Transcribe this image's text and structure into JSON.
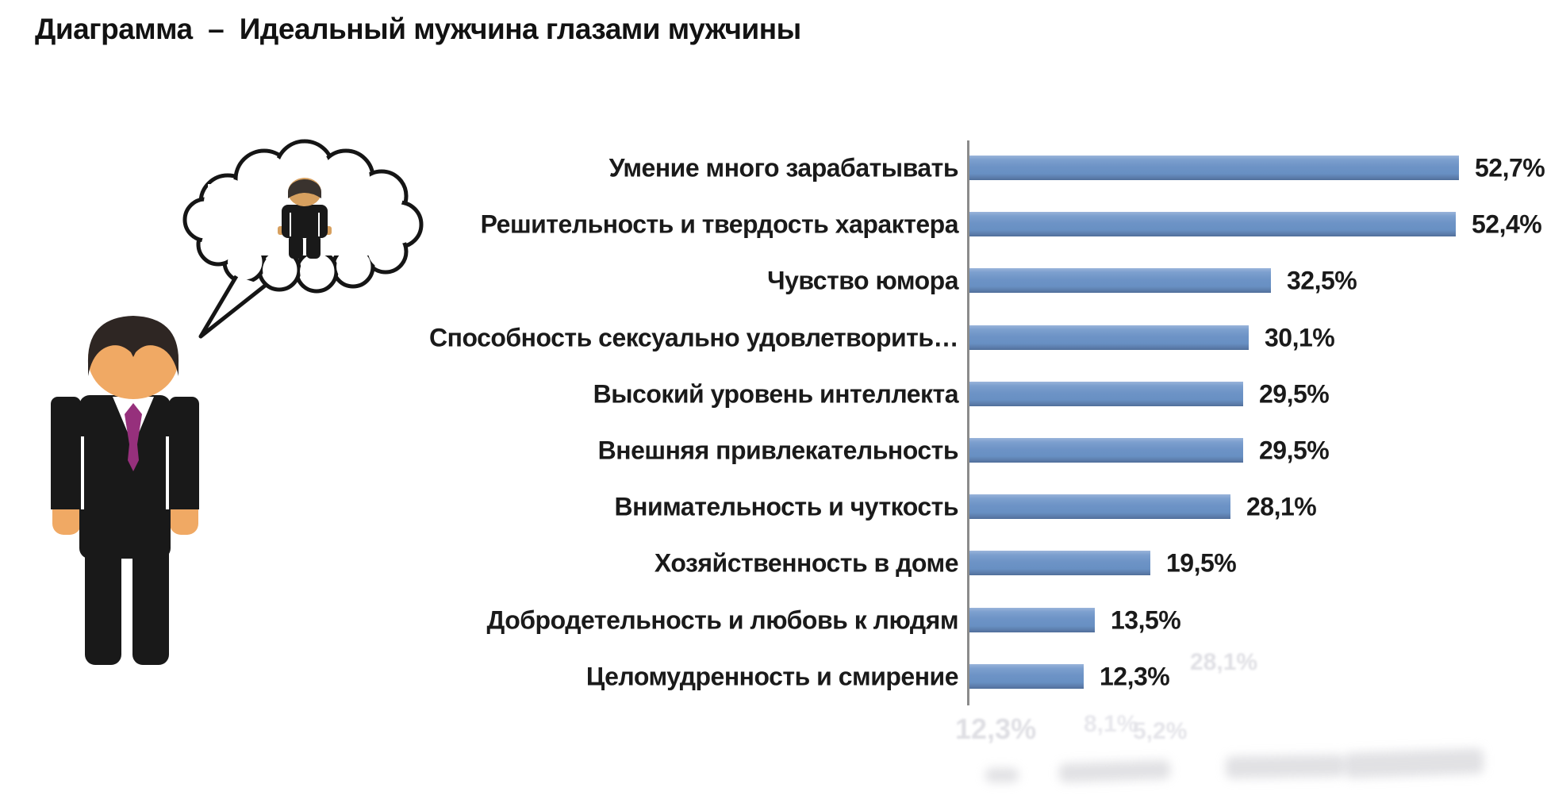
{
  "title": "Диаграмма  –  Идеальный мужчина глазами мужчины",
  "chart_data": {
    "type": "bar",
    "orientation": "horizontal",
    "title": "Идеальный мужчина глазами мужчины",
    "xlabel": "",
    "ylabel": "",
    "xlim": [
      0,
      62
    ],
    "grid": false,
    "legend": false,
    "bar_color": "#6D93C6",
    "axis_color": "#8B8B8B",
    "categories": [
      "Умение много зарабатывать",
      "Решительность и твердость характера",
      "Чувство юмора",
      "Способность сексуально удовлетворить…",
      "Высокий уровень интеллекта",
      "Внешняя привлекательность",
      "Внимательность и чуткость",
      "Хозяйственность в доме",
      "Добродетельность и любовь к людям",
      "Целомудренность и смирение"
    ],
    "values": [
      52.7,
      52.4,
      32.5,
      30.1,
      29.5,
      29.5,
      28.1,
      19.5,
      13.5,
      12.3
    ],
    "value_labels": [
      "52,7%",
      "52,4%",
      "32,5%",
      "30,1%",
      "29,5%",
      "29,5%",
      "28,1%",
      "19,5%",
      "13,5%",
      "12,3%"
    ]
  },
  "illustration": {
    "description": "man in black suit thinking of ideal man in thought bubble",
    "suit_color": "#191919",
    "skin_color": "#F0A964",
    "hair_color": "#2E2623",
    "tie_color": "#96307C",
    "bubble_stroke": "#151515"
  },
  "ghost_artifacts": [
    "28,1%",
    "12,3%",
    "8,1%",
    "5,2%"
  ]
}
